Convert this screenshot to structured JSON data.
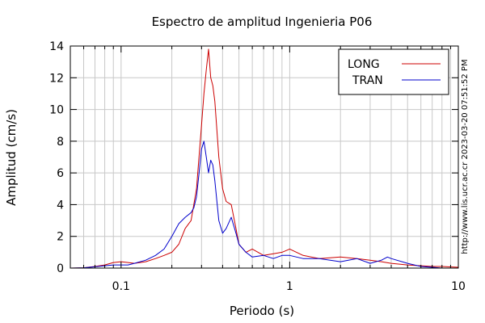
{
  "chart_data": {
    "type": "line",
    "title": "Espectro de amplitud Ingenieria P06",
    "xlabel": "Periodo (s)",
    "ylabel": "Amplitud (cm/s)",
    "x_scale": "log",
    "xlim": [
      0.05,
      10
    ],
    "ylim": [
      0,
      14
    ],
    "x_ticks": [
      {
        "value": 0.1,
        "label": "0.1"
      },
      {
        "value": 1,
        "label": "1"
      },
      {
        "value": 10,
        "label": "10"
      }
    ],
    "y_ticks": [
      {
        "value": 0,
        "label": "0"
      },
      {
        "value": 2,
        "label": "2"
      },
      {
        "value": 4,
        "label": "4"
      },
      {
        "value": 6,
        "label": "6"
      },
      {
        "value": 8,
        "label": "8"
      },
      {
        "value": 10,
        "label": "10"
      },
      {
        "value": 12,
        "label": "12"
      },
      {
        "value": 14,
        "label": "14"
      }
    ],
    "grid": true,
    "legend_position": "top-right",
    "series": [
      {
        "name": "LONG",
        "color": "#cc0000",
        "x": [
          0.05,
          0.06,
          0.07,
          0.08,
          0.09,
          0.1,
          0.11,
          0.12,
          0.14,
          0.16,
          0.18,
          0.2,
          0.22,
          0.24,
          0.26,
          0.28,
          0.3,
          0.31,
          0.32,
          0.33,
          0.34,
          0.35,
          0.36,
          0.38,
          0.4,
          0.42,
          0.45,
          0.48,
          0.5,
          0.55,
          0.6,
          0.7,
          0.8,
          0.9,
          1.0,
          1.2,
          1.5,
          2.0,
          2.5,
          3.0,
          3.5,
          4.0,
          5.0,
          6.0,
          7.0,
          8.0,
          10.0
        ],
        "values": [
          0.0,
          0.02,
          0.1,
          0.2,
          0.35,
          0.4,
          0.35,
          0.3,
          0.4,
          0.6,
          0.8,
          1.0,
          1.5,
          2.5,
          3.0,
          5.0,
          9.0,
          11.0,
          12.5,
          13.8,
          12.0,
          11.5,
          10.5,
          7.0,
          5.0,
          4.2,
          4.0,
          2.5,
          1.5,
          1.0,
          1.2,
          0.8,
          0.9,
          1.0,
          1.2,
          0.8,
          0.6,
          0.7,
          0.6,
          0.5,
          0.4,
          0.3,
          0.2,
          0.15,
          0.1,
          0.1,
          0.05
        ]
      },
      {
        "name": "TRAN",
        "color": "#0000cc",
        "x": [
          0.05,
          0.06,
          0.07,
          0.08,
          0.09,
          0.1,
          0.11,
          0.12,
          0.14,
          0.16,
          0.18,
          0.2,
          0.22,
          0.24,
          0.26,
          0.27,
          0.28,
          0.29,
          0.3,
          0.31,
          0.32,
          0.33,
          0.34,
          0.35,
          0.36,
          0.38,
          0.4,
          0.42,
          0.45,
          0.48,
          0.5,
          0.55,
          0.6,
          0.7,
          0.8,
          0.9,
          1.0,
          1.2,
          1.5,
          2.0,
          2.5,
          3.0,
          3.5,
          3.8,
          4.0,
          5.0,
          6.0,
          7.0,
          8.0,
          10.0
        ],
        "values": [
          0.0,
          0.02,
          0.08,
          0.15,
          0.2,
          0.2,
          0.2,
          0.3,
          0.5,
          0.8,
          1.2,
          2.0,
          2.8,
          3.2,
          3.5,
          3.8,
          4.5,
          6.0,
          7.5,
          8.0,
          7.0,
          6.0,
          6.8,
          6.5,
          5.5,
          3.0,
          2.2,
          2.5,
          3.2,
          2.2,
          1.5,
          1.0,
          0.7,
          0.8,
          0.6,
          0.8,
          0.8,
          0.6,
          0.6,
          0.4,
          0.6,
          0.3,
          0.5,
          0.7,
          0.6,
          0.3,
          0.1,
          0.05,
          0.0,
          0.0
        ]
      }
    ]
  },
  "side_text": "http://www.lis.ucr.ac.cr   2023-03-20 07:51:52 PM"
}
